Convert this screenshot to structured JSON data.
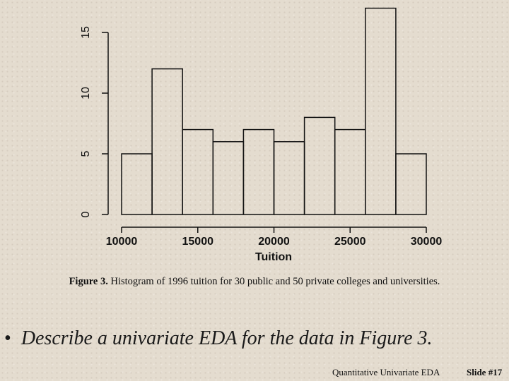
{
  "chart_data": {
    "type": "bar",
    "bins": [
      {
        "from": 10000,
        "to": 12000,
        "count": 5
      },
      {
        "from": 12000,
        "to": 14000,
        "count": 12
      },
      {
        "from": 14000,
        "to": 16000,
        "count": 7
      },
      {
        "from": 16000,
        "to": 18000,
        "count": 6
      },
      {
        "from": 18000,
        "to": 20000,
        "count": 7
      },
      {
        "from": 20000,
        "to": 22000,
        "count": 6
      },
      {
        "from": 22000,
        "to": 24000,
        "count": 8
      },
      {
        "from": 24000,
        "to": 26000,
        "count": 7
      },
      {
        "from": 26000,
        "to": 28000,
        "count": 17
      },
      {
        "from": 28000,
        "to": 30000,
        "count": 5
      }
    ],
    "xlabel": "Tuition",
    "ylabel": "",
    "xlim": [
      10000,
      30000
    ],
    "ylim": [
      0,
      15
    ],
    "x_ticks": [
      "10000",
      "15000",
      "20000",
      "25000",
      "30000"
    ],
    "y_ticks": [
      "0",
      "5",
      "10",
      "15"
    ],
    "grid": false
  },
  "caption": {
    "label": "Figure 3.",
    "text": "Histogram of 1996 tuition for 30 public and 50 private colleges and universities."
  },
  "bullet": {
    "symbol": "•",
    "text": "Describe a univariate EDA for the data in Figure 3."
  },
  "footer": {
    "title": "Quantitative Univariate EDA",
    "slide": "Slide #17"
  }
}
